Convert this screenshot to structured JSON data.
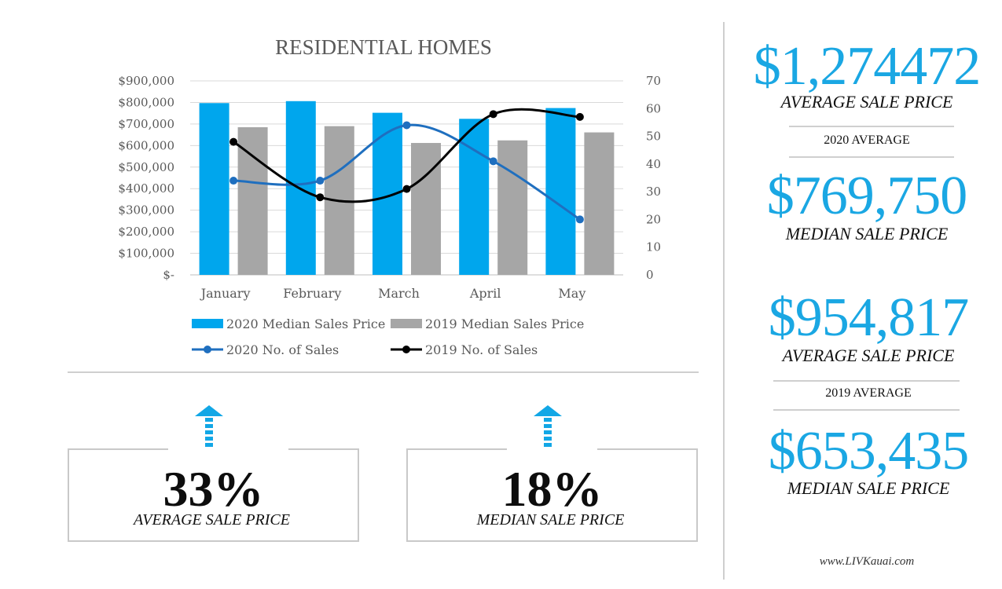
{
  "chart_data": {
    "type": "bar",
    "title": "RESIDENTIAL HOMES",
    "categories": [
      "January",
      "February",
      "March",
      "April",
      "May"
    ],
    "y_left": {
      "ylim": [
        0,
        900000
      ],
      "ticks": [
        "$-",
        "$100,000",
        "$200,000",
        "$300,000",
        "$400,000",
        "$500,000",
        "$600,000",
        "$700,000",
        "$800,000",
        "$900,000"
      ]
    },
    "y_right": {
      "ylim": [
        0,
        70
      ],
      "ticks": [
        "0",
        "10",
        "20",
        "30",
        "40",
        "50",
        "60",
        "70"
      ]
    },
    "series": [
      {
        "name": "2020 Median Sales Price",
        "type": "bar",
        "axis": "left",
        "color": "#00a6ed",
        "values": [
          797000,
          806000,
          752000,
          724000,
          774000
        ]
      },
      {
        "name": "2019 Median Sales Price",
        "type": "bar",
        "axis": "left",
        "color": "#a6a6a6",
        "values": [
          685000,
          690000,
          612000,
          624000,
          661000
        ]
      },
      {
        "name": "2020 No. of Sales",
        "type": "line",
        "axis": "right",
        "color": "#1f6fbf",
        "values": [
          34,
          34,
          54,
          41,
          20
        ]
      },
      {
        "name": "2019 No. of Sales",
        "type": "line",
        "axis": "right",
        "color": "#000000",
        "values": [
          48,
          28,
          31,
          58,
          57
        ]
      }
    ],
    "legend": "bottom",
    "grid": true
  },
  "changes": [
    {
      "value": "33%",
      "label": "AVERAGE SALE PRICE",
      "direction": "up"
    },
    {
      "value": "18%",
      "label": "MEDIAN SALE PRICE",
      "direction": "up"
    }
  ],
  "sidebar": {
    "avg_2020": "$1,274472",
    "avg_2020_label": "AVERAGE SALE PRICE",
    "section_2020": "2020 AVERAGE",
    "median_2020": "$769,750",
    "median_2020_label": "MEDIAN SALE PRICE",
    "avg_2019": "$954,817",
    "avg_2019_label": "AVERAGE SALE PRICE",
    "section_2019": "2019 AVERAGE",
    "median_2019": "$653,435",
    "median_2019_label": "MEDIAN SALE PRICE",
    "website": "www.LIVKauai.com"
  },
  "colors": {
    "accent": "#1aa7e3",
    "arrow": "#12a7e6"
  }
}
